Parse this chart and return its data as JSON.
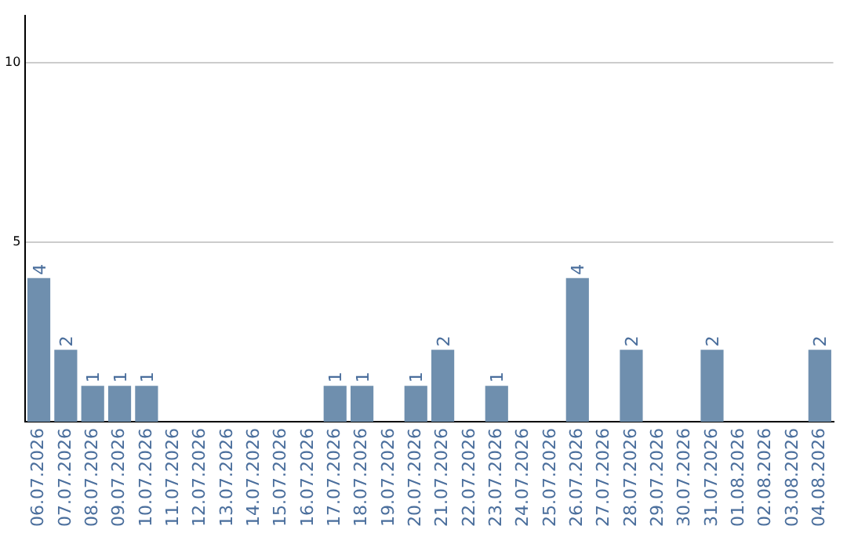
{
  "chart_data": {
    "type": "bar",
    "categories": [
      "06.07.2026",
      "07.07.2026",
      "08.07.2026",
      "09.07.2026",
      "10.07.2026",
      "11.07.2026",
      "12.07.2026",
      "13.07.2026",
      "14.07.2026",
      "15.07.2026",
      "16.07.2026",
      "17.07.2026",
      "18.07.2026",
      "19.07.2026",
      "20.07.2026",
      "21.07.2026",
      "22.07.2026",
      "23.07.2026",
      "24.07.2026",
      "25.07.2026",
      "26.07.2026",
      "27.07.2026",
      "28.07.2026",
      "29.07.2026",
      "30.07.2026",
      "31.07.2026",
      "01.08.2026",
      "02.08.2026",
      "03.08.2026",
      "04.08.2026"
    ],
    "values": [
      4,
      2,
      1,
      1,
      1,
      0,
      0,
      0,
      0,
      0,
      0,
      1,
      1,
      0,
      1,
      2,
      0,
      1,
      0,
      0,
      4,
      0,
      2,
      0,
      0,
      2,
      0,
      0,
      0,
      2
    ],
    "value_labels": [
      "4",
      "2",
      "1",
      "1",
      "1",
      null,
      null,
      null,
      null,
      null,
      null,
      "1",
      "1",
      null,
      "1",
      "2",
      null,
      "1",
      null,
      null,
      "4",
      null,
      "2",
      null,
      null,
      "2",
      null,
      null,
      null,
      "2"
    ],
    "color": "#6f8fae",
    "ylim": [
      0,
      11.3
    ],
    "yticks": [
      5,
      10
    ],
    "grid": "y",
    "legend": false
  }
}
